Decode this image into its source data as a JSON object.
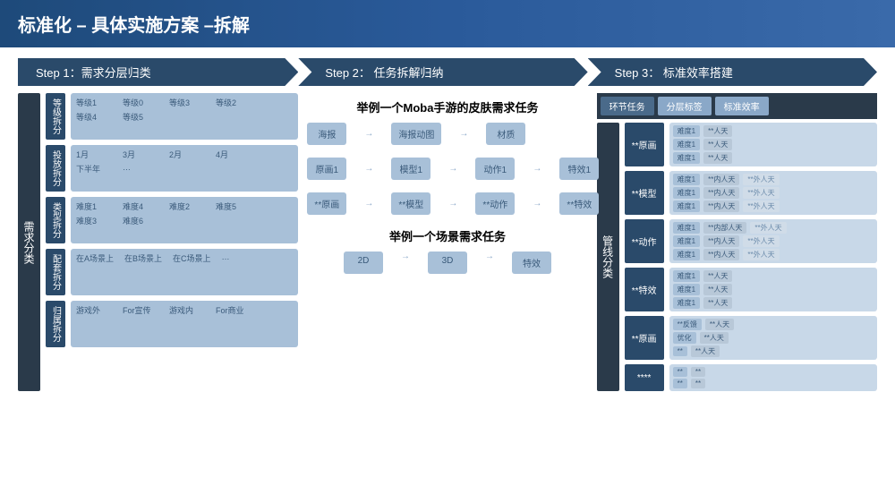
{
  "header": {
    "title": "标准化 – 具体实施方案 –拆解"
  },
  "steps": [
    {
      "label": "Step 1：需求分层归类"
    },
    {
      "label": "Step 2： 任务拆解归纳"
    },
    {
      "label": "Step 3： 标准效率搭建"
    }
  ],
  "col1": {
    "vbar": "需求分类",
    "categories": [
      {
        "label": "等级拆分",
        "items": [
          "等级1",
          "等级0",
          "等级3",
          "等级2",
          "等级4",
          "等级5"
        ]
      },
      {
        "label": "投放拆分",
        "items": [
          "1月",
          "3月",
          "2月",
          "4月",
          "下半年",
          "…"
        ]
      },
      {
        "label": "类型拆分",
        "items": [
          "难度1",
          "难度4",
          "难度2",
          "难度5",
          "难度3",
          "难度6"
        ]
      },
      {
        "label": "配套拆分",
        "items": [
          "在A场景上",
          "在B场景上",
          "在C场景上",
          "…"
        ]
      },
      {
        "label": "归属拆分",
        "items": [
          "游戏外",
          "For宣传",
          "游戏内",
          "For商业"
        ]
      }
    ]
  },
  "col2": {
    "ex1_title": "举例一个Moba手游的皮肤需求任务",
    "ex1_row1": [
      "海报",
      "海报动图",
      "材质"
    ],
    "ex1_row2": [
      "原画1",
      "模型1",
      "动作1",
      "特效1"
    ],
    "ex1_row3": [
      "**原画",
      "**模型",
      "**动作",
      "**特效"
    ],
    "ex2_title": "举例一个场景需求任务",
    "ex2_row": [
      "2D",
      "3D",
      "特效"
    ]
  },
  "col3": {
    "tabs": [
      "环节任务",
      "分层标签",
      "标准效率"
    ],
    "vbar": "管线分类",
    "pipes": [
      {
        "label": "**原画",
        "lines": [
          [
            "难度1",
            "**人天"
          ],
          [
            "难度1",
            "**人天"
          ],
          [
            "难度1",
            "**人天"
          ]
        ]
      },
      {
        "label": "**模型",
        "lines": [
          [
            "难度1",
            "**内人天",
            "**外人天"
          ],
          [
            "难度1",
            "**内人天",
            "**外人天"
          ],
          [
            "难度1",
            "**内人天",
            "**外人天"
          ]
        ]
      },
      {
        "label": "**动作",
        "lines": [
          [
            "难度1",
            "**内部人天",
            "**外人天"
          ],
          [
            "难度1",
            "**内人天",
            "**外人天"
          ],
          [
            "难度1",
            "**内人天",
            "**外人天"
          ]
        ]
      },
      {
        "label": "**特效",
        "lines": [
          [
            "难度1",
            "**人天"
          ],
          [
            "难度1",
            "**人天"
          ],
          [
            "难度1",
            "**人天"
          ]
        ]
      },
      {
        "label": "**原画",
        "lines": [
          [
            "**反馈",
            "**人天"
          ],
          [
            "优化",
            "**人天"
          ],
          [
            "**",
            "**人天"
          ]
        ]
      },
      {
        "label": "****",
        "lines": [
          [
            "**",
            "**"
          ],
          [
            "**",
            "**"
          ]
        ]
      }
    ]
  },
  "colors": {
    "header_bg": "#1e4a7a",
    "step_bg": "#2a4a6a",
    "vbar_bg": "#2a3a4a",
    "cat_label_bg": "#2a4a6a",
    "box_bg": "#a8c0d8",
    "text_muted": "#3a5a7a"
  }
}
